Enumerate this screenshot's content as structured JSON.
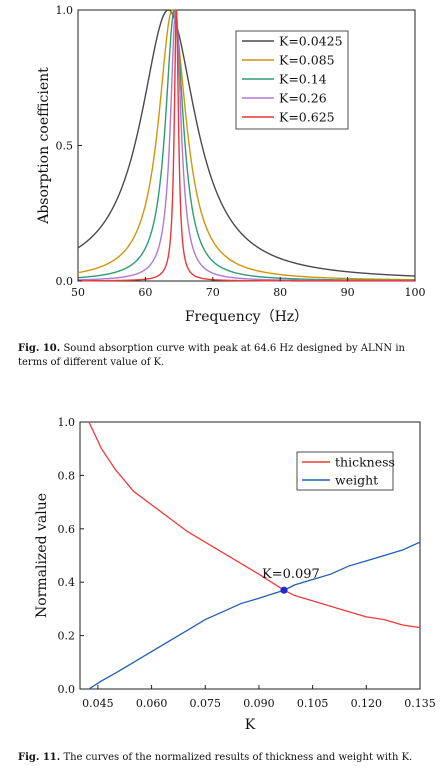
{
  "chart_data": [
    {
      "type": "line",
      "xlabel": "Frequency（Hz）",
      "ylabel": "Absorption coefficient",
      "xlim": [
        50,
        100
      ],
      "ylim": [
        0.0,
        1.0
      ],
      "x_ticks": [
        "50",
        "60",
        "70",
        "80",
        "90",
        "100"
      ],
      "y_ticks": [
        "0.0",
        "0.5",
        "1.0"
      ],
      "grid": false,
      "legend_position": "top-right",
      "series": [
        {
          "name": "K=0.0425",
          "color": "#4a4a4a",
          "peak": 63.4,
          "width": 5.0,
          "x": [
            50,
            52,
            54,
            56,
            58,
            60,
            62,
            63.4,
            64,
            66,
            68,
            70,
            72,
            74,
            76,
            78,
            80,
            85,
            90,
            95,
            100
          ],
          "y": [
            0.18,
            0.24,
            0.33,
            0.46,
            0.62,
            0.8,
            0.96,
            1.0,
            0.99,
            0.91,
            0.76,
            0.6,
            0.47,
            0.37,
            0.29,
            0.24,
            0.2,
            0.13,
            0.1,
            0.08,
            0.07
          ]
        },
        {
          "name": "K=0.085",
          "color": "#d4940a",
          "peak": 64.0,
          "width": 2.5,
          "x": [
            50,
            52,
            54,
            56,
            58,
            60,
            62,
            63,
            64,
            65,
            66,
            68,
            70,
            72,
            75,
            80,
            85,
            90,
            100
          ],
          "y": [
            0.05,
            0.08,
            0.11,
            0.18,
            0.3,
            0.53,
            0.85,
            0.97,
            1.0,
            0.94,
            0.8,
            0.48,
            0.29,
            0.18,
            0.1,
            0.05,
            0.04,
            0.03,
            0.02
          ]
        },
        {
          "name": "K=0.14",
          "color": "#2e9c6e",
          "peak": 64.3,
          "width": 1.6,
          "x": [
            50,
            54,
            58,
            60,
            62,
            63,
            64.3,
            65,
            66,
            68,
            70,
            75,
            80,
            90,
            100
          ],
          "y": [
            0.02,
            0.04,
            0.1,
            0.2,
            0.45,
            0.75,
            1.0,
            0.93,
            0.63,
            0.25,
            0.12,
            0.04,
            0.02,
            0.01,
            0.01
          ]
        },
        {
          "name": "K=0.26",
          "color": "#b278d6",
          "peak": 64.5,
          "width": 0.95,
          "x": [
            50,
            56,
            60,
            62,
            63,
            64.5,
            65.5,
            66.5,
            68,
            70,
            75,
            100
          ],
          "y": [
            0.01,
            0.02,
            0.06,
            0.15,
            0.4,
            1.0,
            0.68,
            0.25,
            0.09,
            0.03,
            0.01,
            0.0
          ]
        },
        {
          "name": "K=0.625",
          "color": "#e83838",
          "peak": 64.6,
          "width": 0.38,
          "x": [
            50,
            60,
            62,
            63.5,
            64.2,
            64.6,
            65.0,
            65.5,
            66.5,
            70,
            100
          ],
          "y": [
            0.0,
            0.01,
            0.03,
            0.16,
            0.66,
            1.0,
            0.68,
            0.22,
            0.05,
            0.01,
            0.0
          ]
        }
      ]
    },
    {
      "type": "line",
      "xlabel": "K",
      "ylabel": "Normalized value",
      "xlim": [
        0.04,
        0.135
      ],
      "ylim": [
        0.0,
        1.0
      ],
      "x_ticks": [
        "0.045",
        "0.060",
        "0.075",
        "0.090",
        "0.105",
        "0.120",
        "0.135"
      ],
      "x_tick_values": [
        0.045,
        0.06,
        0.075,
        0.09,
        0.105,
        0.12,
        0.135
      ],
      "y_ticks": [
        "0.0",
        "0.2",
        "0.4",
        "0.6",
        "0.8",
        "1.0"
      ],
      "grid": false,
      "legend_position": "top-right",
      "annotation": {
        "text": "K=0.097",
        "x": 0.097,
        "y": 0.37,
        "color": "#1f2bd1"
      },
      "series": [
        {
          "name": "thickness",
          "color": "#ee3a3a",
          "x": [
            0.0425,
            0.046,
            0.05,
            0.055,
            0.06,
            0.065,
            0.07,
            0.075,
            0.08,
            0.085,
            0.09,
            0.097,
            0.1,
            0.105,
            0.11,
            0.115,
            0.12,
            0.125,
            0.13,
            0.135
          ],
          "y": [
            1.0,
            0.9,
            0.82,
            0.74,
            0.69,
            0.64,
            0.59,
            0.55,
            0.51,
            0.47,
            0.43,
            0.37,
            0.35,
            0.33,
            0.31,
            0.29,
            0.27,
            0.26,
            0.24,
            0.23
          ]
        },
        {
          "name": "weight",
          "color": "#1f5fb8",
          "x": [
            0.0425,
            0.046,
            0.05,
            0.055,
            0.06,
            0.065,
            0.07,
            0.075,
            0.08,
            0.085,
            0.09,
            0.097,
            0.1,
            0.105,
            0.11,
            0.115,
            0.12,
            0.125,
            0.13,
            0.135
          ],
          "y": [
            0.0,
            0.03,
            0.06,
            0.1,
            0.14,
            0.18,
            0.22,
            0.26,
            0.29,
            0.32,
            0.34,
            0.37,
            0.39,
            0.41,
            0.43,
            0.46,
            0.48,
            0.5,
            0.52,
            0.55
          ]
        }
      ]
    }
  ],
  "captions": {
    "fig10_label": "Fig. 10.",
    "fig10_text": " Sound absorption curve with peak at 64.6 Hz designed by ALNN in terms of different value of K.",
    "fig11_label": "Fig. 11.",
    "fig11_text": " The curves of the normalized results of thickness and weight with K."
  }
}
